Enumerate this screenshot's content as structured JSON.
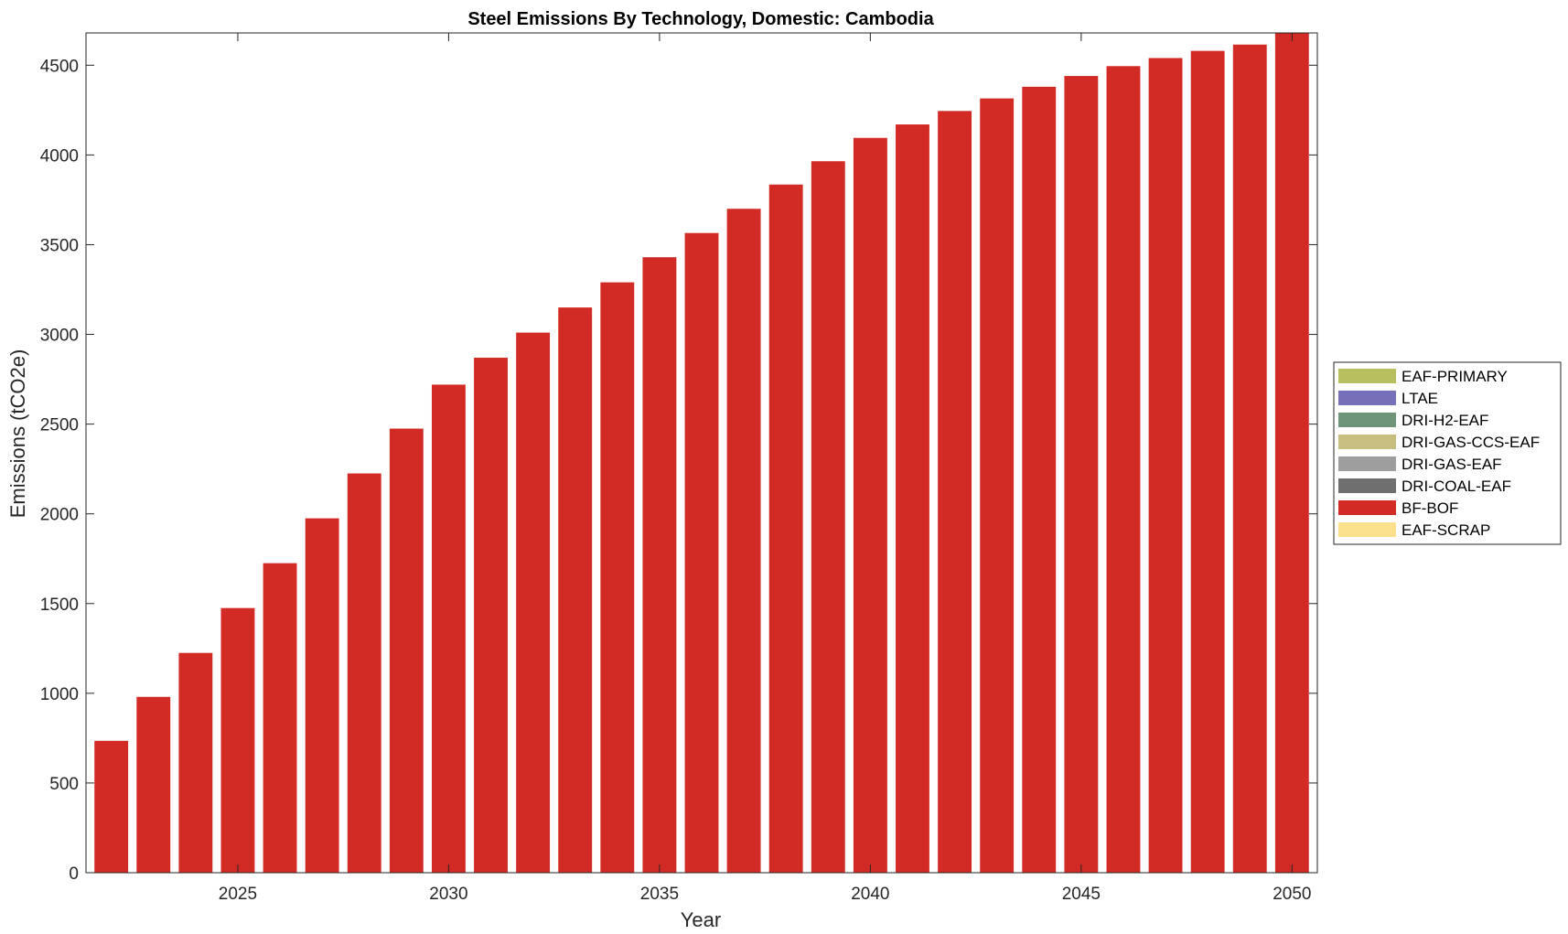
{
  "chart_data": {
    "type": "bar",
    "stacked": true,
    "title": "Steel Emissions By Technology, Domestic: Cambodia",
    "xlabel": "Year",
    "ylabel": "Emissions (tCO2e)",
    "x": [
      2022,
      2023,
      2024,
      2025,
      2026,
      2027,
      2028,
      2029,
      2030,
      2031,
      2032,
      2033,
      2034,
      2035,
      2036,
      2037,
      2038,
      2039,
      2040,
      2041,
      2042,
      2043,
      2044,
      2045,
      2046,
      2047,
      2048,
      2049,
      2050
    ],
    "xlim": [
      2021.4,
      2050.6
    ],
    "ylim": [
      0,
      4680
    ],
    "xticks": [
      2025,
      2030,
      2035,
      2040,
      2045,
      2050
    ],
    "yticks": [
      0,
      500,
      1000,
      1500,
      2000,
      2500,
      3000,
      3500,
      4000,
      4500
    ],
    "xtick_labels": [
      "2025",
      "2030",
      "2035",
      "2040",
      "2045",
      "2050"
    ],
    "ytick_labels": [
      "0",
      "500",
      "1000",
      "1500",
      "2000",
      "2500",
      "3000",
      "3500",
      "4000",
      "4500"
    ],
    "grid": false,
    "legend_position": "outside-right",
    "series": [
      {
        "name": "EAF-PRIMARY",
        "color": "#b7bf5e",
        "values": [
          0,
          0,
          0,
          0,
          0,
          0,
          0,
          0,
          0,
          0,
          0,
          0,
          0,
          0,
          0,
          0,
          0,
          0,
          0,
          0,
          0,
          0,
          0,
          0,
          0,
          0,
          0,
          0,
          0
        ]
      },
      {
        "name": "LTAE",
        "color": "#7570b8",
        "values": [
          0,
          0,
          0,
          0,
          0,
          0,
          0,
          0,
          0,
          0,
          0,
          0,
          0,
          0,
          0,
          0,
          0,
          0,
          0,
          0,
          0,
          0,
          0,
          0,
          0,
          0,
          0,
          0,
          0
        ]
      },
      {
        "name": "DRI-H2-EAF",
        "color": "#6e957a",
        "values": [
          0,
          0,
          0,
          0,
          0,
          0,
          0,
          0,
          0,
          0,
          0,
          0,
          0,
          0,
          0,
          0,
          0,
          0,
          0,
          0,
          0,
          0,
          0,
          0,
          0,
          0,
          0,
          0,
          0
        ]
      },
      {
        "name": "DRI-GAS-CCS-EAF",
        "color": "#c6bd7e",
        "values": [
          0,
          0,
          0,
          0,
          0,
          0,
          0,
          0,
          0,
          0,
          0,
          0,
          0,
          0,
          0,
          0,
          0,
          0,
          0,
          0,
          0,
          0,
          0,
          0,
          0,
          0,
          0,
          0,
          0
        ]
      },
      {
        "name": "DRI-GAS-EAF",
        "color": "#9e9e9e",
        "values": [
          0,
          0,
          0,
          0,
          0,
          0,
          0,
          0,
          0,
          0,
          0,
          0,
          0,
          0,
          0,
          0,
          0,
          0,
          0,
          0,
          0,
          0,
          0,
          0,
          0,
          0,
          0,
          0,
          0
        ]
      },
      {
        "name": "DRI-COAL-EAF",
        "color": "#6f6f6f",
        "values": [
          0,
          0,
          0,
          0,
          0,
          0,
          0,
          0,
          0,
          0,
          0,
          0,
          0,
          0,
          0,
          0,
          0,
          0,
          0,
          0,
          0,
          0,
          0,
          0,
          0,
          0,
          0,
          0,
          0
        ]
      },
      {
        "name": "BF-BOF",
        "color": "#d22b25",
        "values": [
          735,
          980,
          1225,
          1475,
          1725,
          1975,
          2225,
          2475,
          2720,
          2870,
          3010,
          3150,
          3290,
          3430,
          3565,
          3700,
          3835,
          3965,
          4095,
          4170,
          4245,
          4315,
          4380,
          4440,
          4495,
          4540,
          4580,
          4615,
          4690
        ]
      },
      {
        "name": "EAF-SCRAP",
        "color": "#fbe08d",
        "values": [
          0,
          0,
          0,
          0,
          0,
          0,
          0,
          0,
          0,
          0,
          0,
          0,
          0,
          0,
          0,
          0,
          0,
          0,
          0,
          0,
          0,
          0,
          0,
          0,
          0,
          0,
          0,
          0,
          0
        ]
      }
    ]
  }
}
